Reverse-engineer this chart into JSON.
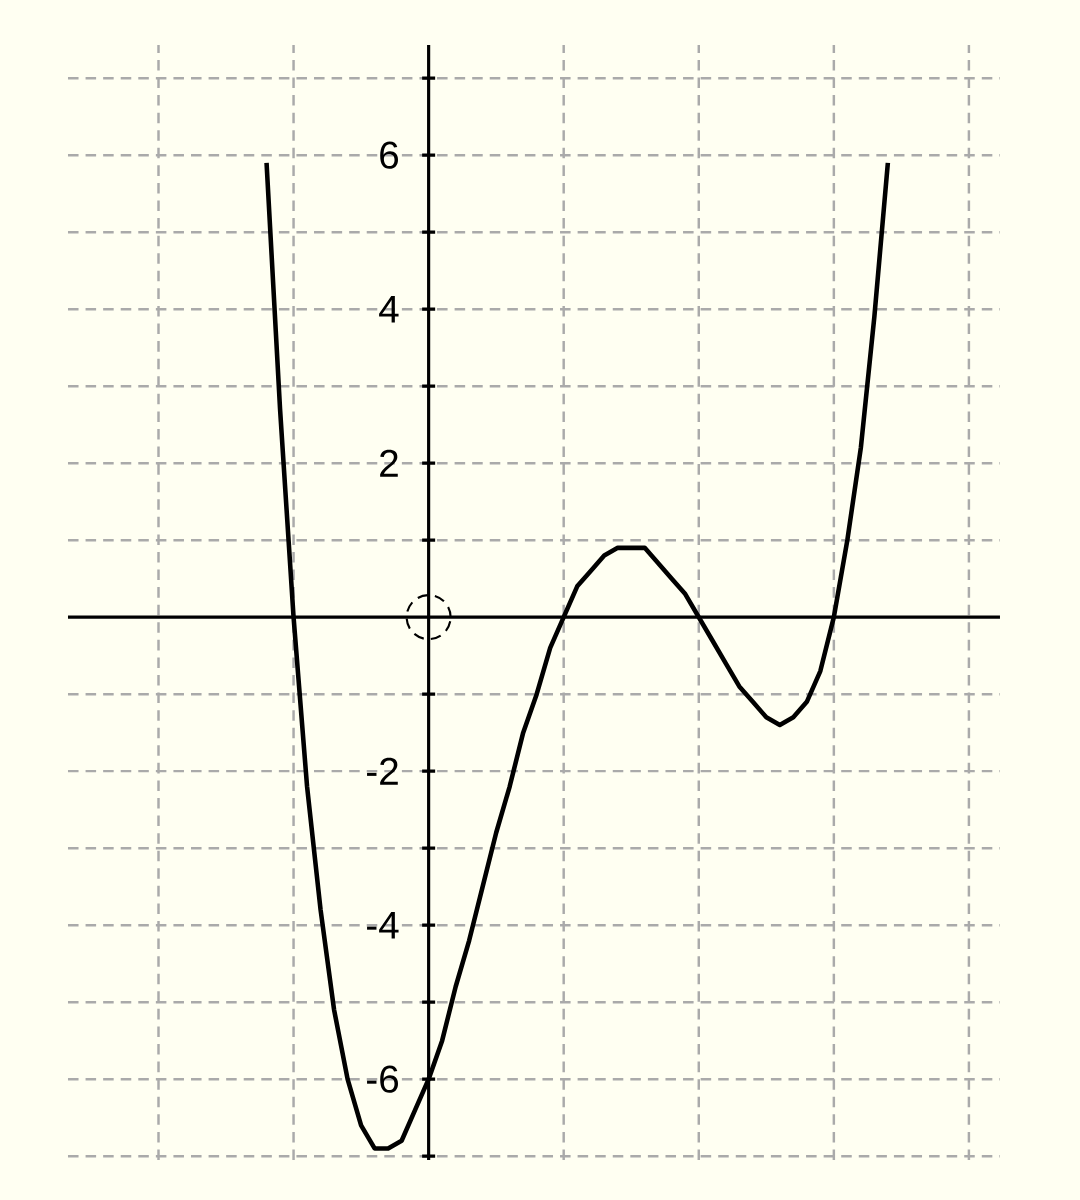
{
  "chart_data": {
    "type": "line",
    "ylim": [
      -7.05,
      7.43
    ],
    "categories": [
      null,
      null,
      null,
      null,
      null,
      null,
      null,
      null,
      null,
      null,
      null,
      null,
      null,
      null,
      null,
      null,
      null,
      null,
      null,
      null,
      null,
      null,
      null,
      null,
      null,
      null,
      null,
      null,
      null,
      null,
      null,
      null,
      null,
      null,
      null,
      null,
      null,
      null,
      null,
      null,
      null,
      null,
      null,
      null,
      null,
      null,
      null
    ],
    "yticks": [
      {
        "value": -7,
        "label": null
      },
      -6,
      {
        "value": -5,
        "label": null
      },
      -4,
      {
        "value": -3,
        "label": null
      },
      -2,
      {
        "value": -1,
        "label": null
      },
      {
        "value": 0,
        "label": null
      },
      {
        "value": 1,
        "label": null
      },
      2,
      {
        "value": 3,
        "label": null
      },
      4,
      {
        "value": 5,
        "label": null
      },
      6,
      {
        "value": 7,
        "label": null
      }
    ],
    "tick_labels": "y",
    "grid": true,
    "series": [
      {
        "color": "#000000",
        "marker": "none",
        "values": [
          5.9,
          2.7,
          0,
          -2.2,
          -3.8,
          -5.1,
          -6.0,
          -6.6,
          -6.9,
          -6.9,
          -6.8,
          -6.4,
          -6,
          -5.5,
          -4.8,
          -4.2,
          -3.5,
          -2.8,
          -2.2,
          -1.5,
          -1.0,
          -0.4,
          0,
          0.4,
          0.6,
          0.8,
          0.9,
          0.9,
          0.9,
          0.7,
          0.5,
          0.3,
          0,
          -0.3,
          -0.6,
          -0.9,
          -1.1,
          -1.3,
          -1.4,
          -1.3,
          -1.1,
          -0.7,
          0,
          1.0,
          2.2,
          3.9,
          5.9
        ]
      }
    ]
  }
}
